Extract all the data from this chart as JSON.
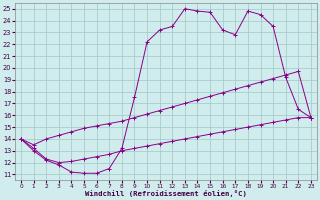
{
  "xlabel": "Windchill (Refroidissement éolien,°C)",
  "bg_color": "#d0ecec",
  "grid_color": "#a0c8c8",
  "line_color": "#880088",
  "xlim": [
    -0.5,
    23.5
  ],
  "ylim": [
    10.5,
    25.5
  ],
  "xticks": [
    0,
    1,
    2,
    3,
    4,
    5,
    6,
    7,
    8,
    9,
    10,
    11,
    12,
    13,
    14,
    15,
    16,
    17,
    18,
    19,
    20,
    21,
    22,
    23
  ],
  "yticks": [
    11,
    12,
    13,
    14,
    15,
    16,
    17,
    18,
    19,
    20,
    21,
    22,
    23,
    24,
    25
  ],
  "line1_x": [
    0,
    1,
    2,
    3,
    4,
    5,
    6,
    7,
    8,
    9,
    10,
    11,
    12,
    13,
    14,
    15,
    16,
    17,
    18,
    19,
    20,
    21,
    22,
    23
  ],
  "line1_y": [
    14.0,
    13.0,
    12.2,
    11.8,
    11.2,
    11.1,
    11.1,
    11.5,
    13.2,
    17.5,
    22.2,
    23.2,
    23.5,
    25.0,
    24.8,
    24.7,
    23.2,
    22.8,
    24.8,
    24.5,
    23.5,
    19.2,
    16.5,
    15.8
  ],
  "line2_x": [
    0,
    1,
    2,
    3,
    4,
    5,
    6,
    7,
    8,
    9,
    10,
    11,
    12,
    13,
    14,
    15,
    16,
    17,
    18,
    19,
    20,
    21,
    22,
    23
  ],
  "line2_y": [
    14.0,
    13.5,
    14.0,
    14.3,
    14.6,
    14.9,
    15.1,
    15.3,
    15.5,
    15.8,
    16.1,
    16.4,
    16.7,
    17.0,
    17.3,
    17.6,
    17.9,
    18.2,
    18.5,
    18.8,
    19.1,
    19.4,
    19.7,
    15.8
  ],
  "line3_x": [
    0,
    1,
    2,
    3,
    4,
    5,
    6,
    7,
    8,
    9,
    10,
    11,
    12,
    13,
    14,
    15,
    16,
    17,
    18,
    19,
    20,
    21,
    22,
    23
  ],
  "line3_y": [
    14.0,
    13.2,
    12.3,
    12.0,
    12.1,
    12.3,
    12.5,
    12.7,
    13.0,
    13.2,
    13.4,
    13.6,
    13.8,
    14.0,
    14.2,
    14.4,
    14.6,
    14.8,
    15.0,
    15.2,
    15.4,
    15.6,
    15.8,
    15.8
  ]
}
